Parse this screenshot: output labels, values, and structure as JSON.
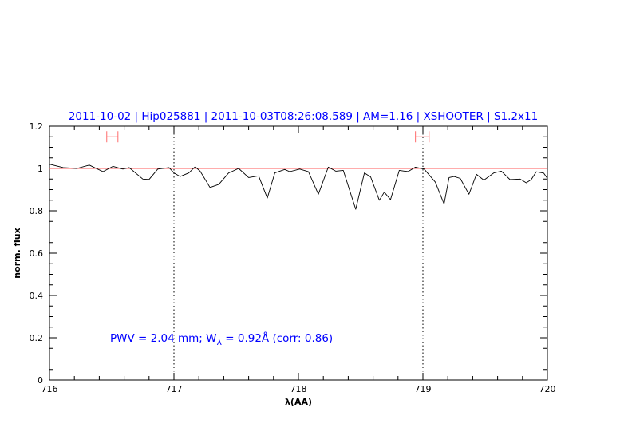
{
  "chart_data": {
    "type": "line",
    "title": "2011-10-02 | Hip025881 | 2011-10-03T08:26:08.589 | AM=1.16 | XSHOOTER | S1.2x11",
    "xlabel": "λ(AA)",
    "ylabel": "norm. flux",
    "xlim": [
      716,
      720
    ],
    "ylim": [
      0,
      1.2
    ],
    "xticks": [
      "716",
      "717",
      "718",
      "719",
      "720"
    ],
    "yticks": [
      "0",
      "0.2",
      "0.4",
      "0.6",
      "0.8",
      "1",
      "1.2"
    ],
    "grid": false,
    "annotation": "PWV = 2.04 mm; Wλ = 0.92Å (corr: 0.86)",
    "annotation_parts": {
      "pre": "PWV = 2.04 mm; W",
      "sub": "λ",
      "post": " = 0.92Å (corr: 0.86)"
    },
    "reference_line": {
      "y": 1.0,
      "color": "#ff5a5a"
    },
    "vertical_markers": [
      717,
      719
    ],
    "ranges": [
      {
        "x": [
          716.46,
          716.55
        ],
        "y": 1.15,
        "color": "#ff6b6b"
      },
      {
        "x": [
          718.94,
          719.05
        ],
        "y": 1.15,
        "color": "#ff6b6b"
      }
    ],
    "title_color": "#0000ff",
    "series_color": "#000000",
    "x": [
      716.0,
      716.11,
      716.22,
      716.32,
      716.43,
      716.51,
      716.59,
      716.64,
      716.75,
      716.8,
      716.87,
      716.96,
      717.0,
      717.05,
      717.12,
      717.17,
      717.21,
      717.29,
      717.36,
      717.44,
      717.52,
      717.6,
      717.68,
      717.75,
      717.81,
      717.89,
      717.93,
      718.01,
      718.08,
      718.16,
      718.24,
      718.3,
      718.36,
      718.46,
      718.53,
      718.58,
      718.65,
      718.69,
      718.74,
      718.81,
      718.88,
      718.94,
      719.01,
      719.1,
      719.17,
      719.21,
      719.25,
      719.3,
      719.37,
      719.43,
      719.49,
      719.57,
      719.63,
      719.7,
      719.78,
      719.83,
      719.87,
      719.91,
      719.97,
      720.0
    ],
    "y": [
      1.02,
      1.004,
      1.0,
      1.016,
      0.985,
      1.01,
      0.997,
      1.004,
      0.95,
      0.948,
      0.997,
      1.004,
      0.979,
      0.962,
      0.979,
      1.008,
      0.987,
      0.91,
      0.925,
      0.979,
      1.0,
      0.957,
      0.965,
      0.86,
      0.979,
      0.995,
      0.985,
      0.997,
      0.985,
      0.878,
      1.006,
      0.987,
      0.991,
      0.807,
      0.979,
      0.96,
      0.85,
      0.888,
      0.853,
      0.991,
      0.985,
      1.006,
      0.997,
      0.935,
      0.832,
      0.957,
      0.962,
      0.953,
      0.878,
      0.972,
      0.945,
      0.979,
      0.987,
      0.947,
      0.95,
      0.932,
      0.947,
      0.984,
      0.978,
      0.953
    ]
  }
}
